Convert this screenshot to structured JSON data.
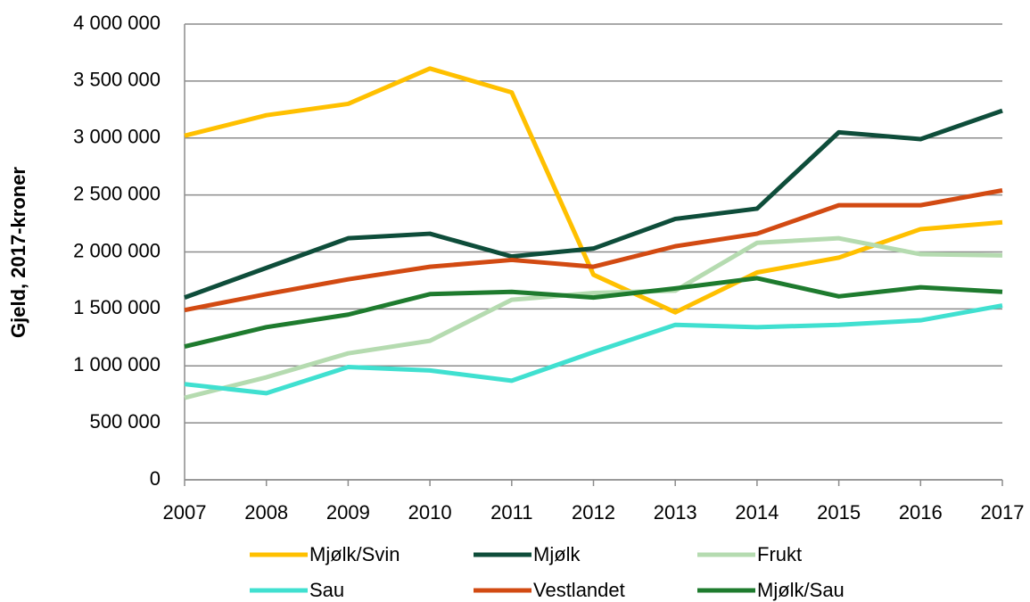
{
  "chart_data": {
    "type": "line",
    "ylabel": "Gjeld, 2017-kroner",
    "x": [
      2007,
      2008,
      2009,
      2010,
      2011,
      2012,
      2013,
      2014,
      2015,
      2016,
      2017
    ],
    "xlim": [
      2007,
      2017
    ],
    "xticks": [
      2007,
      2008,
      2009,
      2010,
      2011,
      2012,
      2013,
      2014,
      2015,
      2016,
      2017
    ],
    "ylim": [
      0,
      4000000
    ],
    "yticks": [
      0,
      {
        "value": 500000,
        "label": "500 000"
      },
      {
        "value": 1000000,
        "label": "1 000 000"
      },
      {
        "value": 1500000,
        "label": "1 500 000"
      },
      {
        "value": 2000000,
        "label": "2 000 000"
      },
      {
        "value": 2500000,
        "label": "2 500 000"
      },
      {
        "value": 3000000,
        "label": "3 000 000"
      },
      {
        "value": 3500000,
        "label": "3 500 000"
      },
      {
        "value": 4000000,
        "label": "4 000 000"
      }
    ],
    "grid": true,
    "legend": "bottom",
    "series": [
      {
        "name": "Mjølk/Svin",
        "color": "#ffc000",
        "values": [
          3020000,
          3200000,
          3300000,
          3610000,
          3400000,
          1800000,
          1470000,
          1820000,
          1950000,
          2200000,
          2260000
        ]
      },
      {
        "name": "Mjølk",
        "color": "#0e4d3a",
        "values": [
          1600000,
          1860000,
          2120000,
          2160000,
          1960000,
          2030000,
          2290000,
          2380000,
          3050000,
          2990000,
          3240000
        ]
      },
      {
        "name": "Frukt",
        "color": "#b5dbb0",
        "values": [
          720000,
          900000,
          1110000,
          1220000,
          1580000,
          1640000,
          1660000,
          2080000,
          2120000,
          1980000,
          1970000
        ]
      },
      {
        "name": "Sau",
        "color": "#40e0d0",
        "values": [
          840000,
          760000,
          990000,
          960000,
          870000,
          1120000,
          1360000,
          1340000,
          1360000,
          1400000,
          1530000
        ]
      },
      {
        "name": "Vestlandet",
        "color": "#d24a12",
        "values": [
          1490000,
          1630000,
          1760000,
          1870000,
          1930000,
          1870000,
          2050000,
          2160000,
          2410000,
          2410000,
          2540000
        ]
      },
      {
        "name": "Mjølk/Sau",
        "color": "#1e7b2e",
        "values": [
          1170000,
          1340000,
          1450000,
          1630000,
          1650000,
          1600000,
          1680000,
          1770000,
          1610000,
          1690000,
          1650000
        ]
      }
    ]
  }
}
